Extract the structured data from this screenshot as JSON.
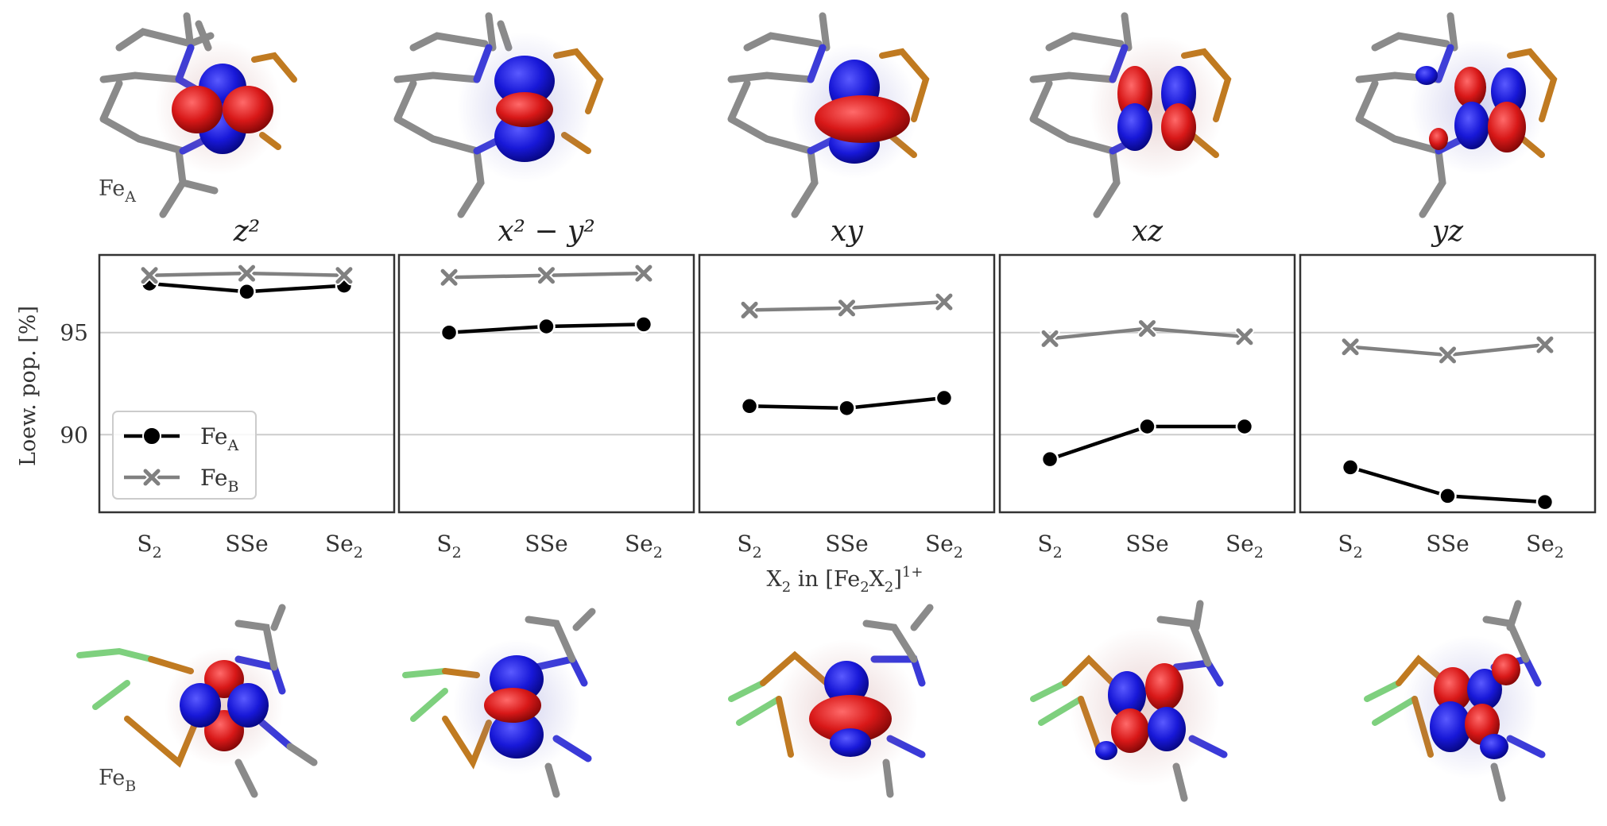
{
  "figure": {
    "atom_top": "Fe",
    "atom_top_sub": "A",
    "atom_bottom": "Fe",
    "atom_bottom_sub": "B"
  },
  "colors": {
    "fe_a": "#000000",
    "fe_b": "#808080",
    "lobe_pos": "#1c1ce0",
    "lobe_neg": "#d81818",
    "grid": "#cccccc",
    "frame": "#333333"
  },
  "chart_data": {
    "type": "line",
    "xlabel": "X",
    "xlabel_sub": "2",
    "xlabel_rest": " in [Fe",
    "xlabel_sub2": "2",
    "xlabel_x": "X",
    "xlabel_sub3": "2",
    "xlabel_close": "]",
    "xlabel_sup": "1+",
    "ylabel": "Loew. pop. [%]",
    "ylim": [
      86.2,
      98.8
    ],
    "yticks": [
      90,
      95
    ],
    "grid": "horizontal",
    "categories": [
      {
        "base": "S",
        "sub": "2"
      },
      {
        "base": "SSe",
        "sub": ""
      },
      {
        "base": "Se",
        "sub": "2"
      }
    ],
    "legend": {
      "placement": "lower-left of first panel",
      "entries": [
        {
          "base": "Fe",
          "sub": "A",
          "marker": "circle"
        },
        {
          "base": "Fe",
          "sub": "B",
          "marker": "x"
        }
      ]
    },
    "panels": [
      {
        "orbital": "z²",
        "series": [
          {
            "name": "FeA",
            "values": [
              97.4,
              97.0,
              97.3
            ]
          },
          {
            "name": "FeB",
            "values": [
              97.8,
              97.9,
              97.8
            ]
          }
        ]
      },
      {
        "orbital": "x² − y²",
        "series": [
          {
            "name": "FeA",
            "values": [
              95.0,
              95.3,
              95.4
            ]
          },
          {
            "name": "FeB",
            "values": [
              97.7,
              97.8,
              97.9
            ]
          }
        ]
      },
      {
        "orbital": "xy",
        "series": [
          {
            "name": "FeA",
            "values": [
              91.4,
              91.3,
              91.8
            ]
          },
          {
            "name": "FeB",
            "values": [
              96.1,
              96.2,
              96.5
            ]
          }
        ]
      },
      {
        "orbital": "xz",
        "series": [
          {
            "name": "FeA",
            "values": [
              88.8,
              90.4,
              90.4
            ]
          },
          {
            "name": "FeB",
            "values": [
              94.7,
              95.2,
              94.8
            ]
          }
        ]
      },
      {
        "orbital": "yz",
        "series": [
          {
            "name": "FeA",
            "values": [
              88.4,
              87.0,
              86.7
            ]
          },
          {
            "name": "FeB",
            "values": [
              94.3,
              93.9,
              94.4
            ]
          }
        ]
      }
    ]
  }
}
